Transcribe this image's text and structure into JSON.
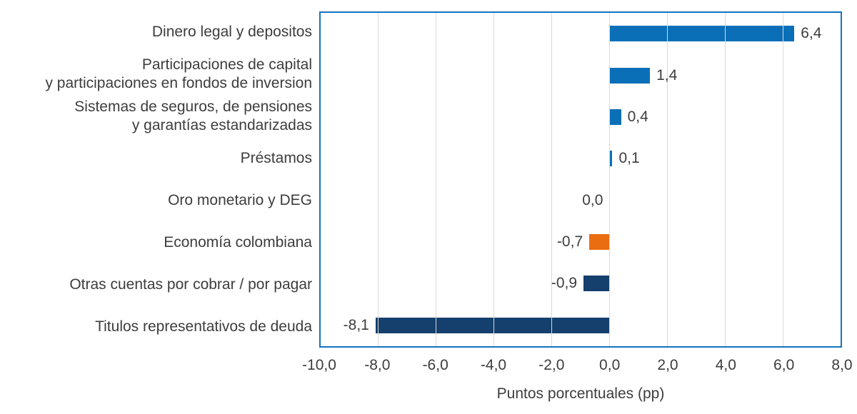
{
  "chart_data": {
    "type": "bar",
    "orientation": "horizontal",
    "title": "",
    "xlabel": "Puntos porcentuales (pp)",
    "ylabel": "",
    "xlim": [
      -10,
      8
    ],
    "grid": "vertical",
    "legend": "none",
    "x_ticks": [
      {
        "value": -10,
        "label": "-10,0"
      },
      {
        "value": -8,
        "label": "-8,0"
      },
      {
        "value": -6,
        "label": "-6,0"
      },
      {
        "value": -4,
        "label": "-4,0"
      },
      {
        "value": -2,
        "label": "-2,0"
      },
      {
        "value": 0,
        "label": "0,0"
      },
      {
        "value": 2,
        "label": "2,0"
      },
      {
        "value": 4,
        "label": "4,0"
      },
      {
        "value": 6,
        "label": "6,0"
      },
      {
        "value": 8,
        "label": "8,0"
      }
    ],
    "bars": [
      {
        "label_lines": [
          "Dinero legal y depositos"
        ],
        "value": 6.4,
        "value_label": "6,4",
        "color": "#0b6fb8"
      },
      {
        "label_lines": [
          "Participaciones de capital",
          "y participaciones en fondos de inversion"
        ],
        "value": 1.4,
        "value_label": "1,4",
        "color": "#0b6fb8"
      },
      {
        "label_lines": [
          "Sistemas de seguros, de pensiones",
          "y garantías estandarizadas"
        ],
        "value": 0.4,
        "value_label": "0,4",
        "color": "#0b6fb8"
      },
      {
        "label_lines": [
          "Préstamos"
        ],
        "value": 0.1,
        "value_label": "0,1",
        "color": "#0b6fb8"
      },
      {
        "label_lines": [
          "Oro monetario y DEG"
        ],
        "value": 0.0,
        "value_label": "0,0",
        "color": "#0b6fb8"
      },
      {
        "label_lines": [
          "Economía colombiana"
        ],
        "value": -0.7,
        "value_label": "-0,7",
        "color": "#ea6d12"
      },
      {
        "label_lines": [
          "Otras cuentas por cobrar / por pagar"
        ],
        "value": -0.9,
        "value_label": "-0,9",
        "color": "#153f6d"
      },
      {
        "label_lines": [
          "Titulos representativos de deuda"
        ],
        "value": -8.1,
        "value_label": "-8,1",
        "color": "#153f6d"
      }
    ],
    "colors": {
      "positive_bar": "#0b6fb8",
      "negative_bar": "#153f6d",
      "highlight_bar": "#ea6d12",
      "frame": "#1474bd",
      "gridline": "#d9d9d9",
      "text": "#3d3d3d"
    }
  }
}
